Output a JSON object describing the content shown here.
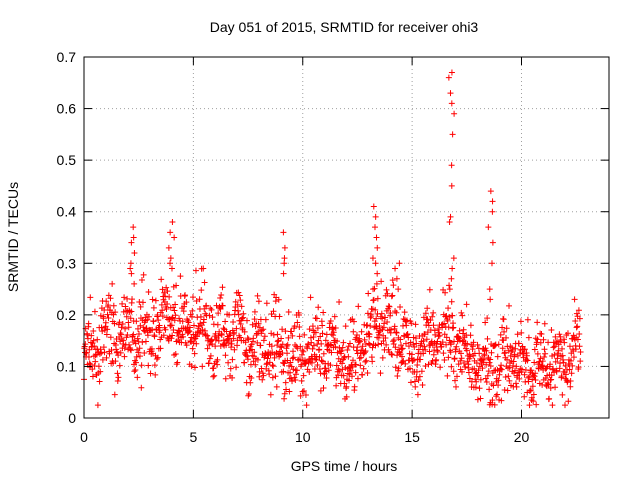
{
  "chart_data": {
    "type": "scatter",
    "title": "Day 051 of 2015, SRMTID for receiver ohi3",
    "xlabel": "GPS time / hours",
    "ylabel": "SRMTID / TECUs",
    "xlim": [
      0,
      24
    ],
    "ylim": [
      0,
      0.7
    ],
    "x_ticks": [
      0,
      5,
      10,
      15,
      20
    ],
    "x_tick_labels": [
      "0",
      "5",
      "10",
      "15",
      "20"
    ],
    "y_ticks": [
      0,
      0.1,
      0.2,
      0.3,
      0.4,
      0.5,
      0.6,
      0.7
    ],
    "y_tick_labels": [
      "0",
      "0.1",
      "0.2",
      "0.3",
      "0.4",
      "0.5",
      "0.6",
      "0.7"
    ],
    "grid": true,
    "marker": "+",
    "series": [
      {
        "name": "SRMTID",
        "color": "#ff0000",
        "x_range": [
          0,
          22.7
        ],
        "baseline": [
          [
            0.0,
            0.11
          ],
          [
            0.5,
            0.13
          ],
          [
            1.0,
            0.16
          ],
          [
            1.5,
            0.15
          ],
          [
            2.0,
            0.17
          ],
          [
            2.5,
            0.16
          ],
          [
            3.0,
            0.16
          ],
          [
            3.5,
            0.18
          ],
          [
            4.0,
            0.19
          ],
          [
            4.5,
            0.17
          ],
          [
            5.0,
            0.16
          ],
          [
            5.5,
            0.17
          ],
          [
            6.0,
            0.16
          ],
          [
            6.5,
            0.17
          ],
          [
            7.0,
            0.16
          ],
          [
            7.5,
            0.14
          ],
          [
            8.0,
            0.13
          ],
          [
            8.5,
            0.14
          ],
          [
            9.0,
            0.13
          ],
          [
            9.5,
            0.12
          ],
          [
            10.0,
            0.11
          ],
          [
            10.5,
            0.13
          ],
          [
            11.0,
            0.14
          ],
          [
            11.5,
            0.13
          ],
          [
            12.0,
            0.1
          ],
          [
            12.5,
            0.12
          ],
          [
            13.0,
            0.15
          ],
          [
            13.5,
            0.18
          ],
          [
            14.0,
            0.17
          ],
          [
            14.5,
            0.15
          ],
          [
            15.0,
            0.12
          ],
          [
            15.5,
            0.13
          ],
          [
            16.0,
            0.15
          ],
          [
            16.5,
            0.17
          ],
          [
            17.0,
            0.15
          ],
          [
            17.5,
            0.12
          ],
          [
            18.0,
            0.11
          ],
          [
            18.5,
            0.1
          ],
          [
            19.0,
            0.1
          ],
          [
            19.5,
            0.11
          ],
          [
            20.0,
            0.11
          ],
          [
            20.5,
            0.1
          ],
          [
            21.0,
            0.1
          ],
          [
            21.5,
            0.11
          ],
          [
            22.0,
            0.11
          ],
          [
            22.7,
            0.13
          ]
        ],
        "spikes": [
          {
            "x": 2.2,
            "values": [
              0.37,
              0.35,
              0.34,
              0.32,
              0.3,
              0.29,
              0.28,
              0.26
            ]
          },
          {
            "x": 4.0,
            "values": [
              0.38,
              0.36,
              0.35,
              0.33,
              0.31,
              0.3,
              0.29
            ]
          },
          {
            "x": 9.1,
            "values": [
              0.36,
              0.33,
              0.31,
              0.3,
              0.28
            ]
          },
          {
            "x": 13.3,
            "values": [
              0.41,
              0.39,
              0.37,
              0.35,
              0.33,
              0.31,
              0.3,
              0.28,
              0.26,
              0.25
            ]
          },
          {
            "x": 14.3,
            "values": [
              0.3,
              0.29,
              0.27,
              0.25
            ]
          },
          {
            "x": 16.8,
            "values": [
              0.67,
              0.66,
              0.63,
              0.61,
              0.59,
              0.55,
              0.49,
              0.45,
              0.39,
              0.38,
              0.31,
              0.29,
              0.27,
              0.25
            ]
          },
          {
            "x": 18.6,
            "values": [
              0.44,
              0.42,
              0.4,
              0.37,
              0.34,
              0.3,
              0.25,
              0.23
            ]
          }
        ]
      }
    ]
  }
}
